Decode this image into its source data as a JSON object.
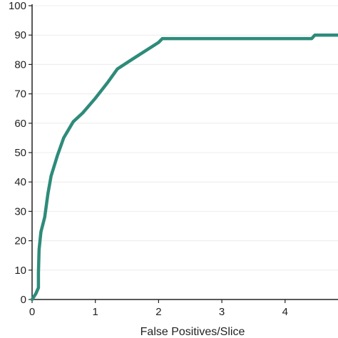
{
  "chart_data": {
    "type": "line",
    "title": "",
    "xlabel": "False Positives/Slice",
    "ylabel": "",
    "xlim": [
      0,
      4.9
    ],
    "ylim": [
      0,
      100
    ],
    "x_ticks": [
      0,
      1,
      2,
      3,
      4
    ],
    "y_ticks": [
      0,
      10,
      20,
      30,
      40,
      50,
      60,
      70,
      80,
      90,
      100
    ],
    "grid": "horizontal",
    "legend": "none",
    "series": [
      {
        "color": "#2e8b7a",
        "points": [
          [
            0.0,
            0.0
          ],
          [
            0.06,
            2.0
          ],
          [
            0.1,
            4.0
          ],
          [
            0.1,
            9.0
          ],
          [
            0.11,
            17.0
          ],
          [
            0.14,
            23.0
          ],
          [
            0.2,
            28.0
          ],
          [
            0.25,
            36.0
          ],
          [
            0.3,
            42.0
          ],
          [
            0.4,
            49.0
          ],
          [
            0.5,
            55.0
          ],
          [
            0.65,
            60.5
          ],
          [
            0.8,
            63.5
          ],
          [
            1.0,
            68.5
          ],
          [
            1.2,
            74.0
          ],
          [
            1.35,
            78.5
          ],
          [
            1.6,
            82.0
          ],
          [
            2.0,
            87.5
          ],
          [
            2.06,
            88.8
          ],
          [
            2.5,
            88.8
          ],
          [
            3.0,
            88.8
          ],
          [
            3.5,
            88.8
          ],
          [
            4.0,
            88.8
          ],
          [
            4.42,
            88.8
          ],
          [
            4.47,
            90.0
          ],
          [
            4.9,
            90.0
          ]
        ]
      }
    ]
  }
}
